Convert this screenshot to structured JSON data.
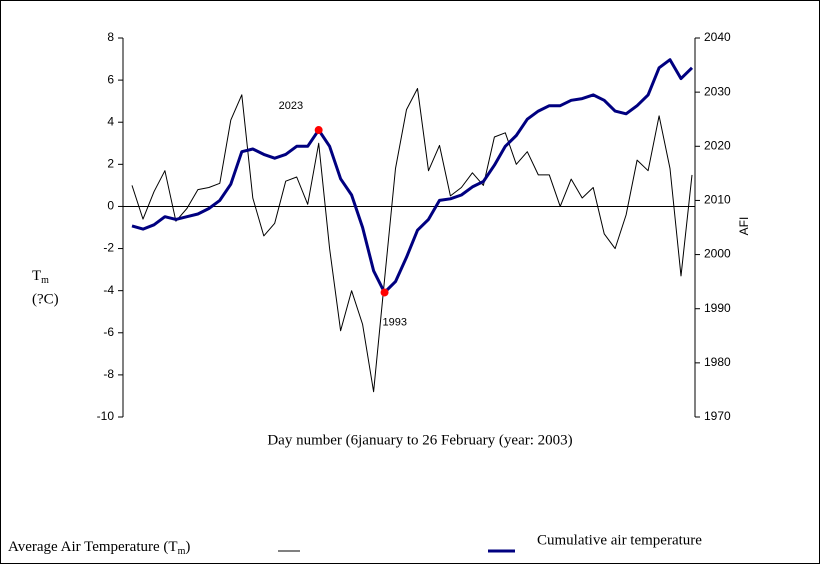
{
  "chart_data": {
    "type": "line",
    "xlabel": "Day number (6january to 26 February (year: 2003)",
    "ylabel": {
      "main": "T",
      "sub": "m",
      "unit": "(?C)"
    },
    "y2label": "AFI",
    "x": [
      1,
      2,
      3,
      4,
      5,
      6,
      7,
      8,
      9,
      10,
      11,
      12,
      13,
      14,
      15,
      16,
      17,
      18,
      19,
      20,
      21,
      22,
      23,
      24,
      25,
      26,
      27,
      28,
      29,
      30,
      31,
      32,
      33,
      34,
      35,
      36,
      37,
      38,
      39,
      40,
      41,
      42,
      43,
      44,
      45,
      46,
      47,
      48,
      49,
      50,
      51,
      52
    ],
    "xlim": [
      1,
      52
    ],
    "ylim": [
      -10,
      8
    ],
    "yticks": [
      -10,
      -8,
      -6,
      -4,
      -2,
      0,
      2,
      4,
      6,
      8
    ],
    "y2lim": [
      1970,
      2040
    ],
    "y2ticks": [
      1970,
      1980,
      1990,
      2000,
      2010,
      2020,
      2030,
      2040
    ],
    "series": [
      {
        "name": {
          "main": "Average Air Temperature (T",
          "sub": "m",
          "end": ")"
        },
        "color": "#000000",
        "values": [
          1.0,
          -0.6,
          0.7,
          1.7,
          -0.7,
          -0.1,
          0.8,
          0.9,
          1.1,
          4.1,
          5.3,
          0.4,
          -1.4,
          -0.8,
          1.2,
          1.4,
          0.1,
          3.0,
          -2.0,
          -5.9,
          -4.0,
          -5.6,
          -8.8,
          -3.5,
          1.8,
          4.6,
          5.6,
          1.7,
          2.9,
          0.5,
          0.9,
          1.6,
          1.0,
          3.3,
          3.5,
          2.0,
          2.6,
          1.5,
          1.5,
          0.0,
          1.3,
          0.4,
          0.9,
          -1.3,
          -2.0,
          -0.4,
          2.2,
          1.7,
          4.3,
          1.8,
          -3.3,
          1.5
        ]
      },
      {
        "name": "Cumulative air temperature",
        "color": "#000080",
        "axis": "y2",
        "values": [
          2005.3,
          2004.7,
          2005.5,
          2007,
          2006.5,
          2007,
          2007.5,
          2008.5,
          2010,
          2013,
          2019,
          2019.5,
          2018.5,
          2017.8,
          2018.5,
          2020,
          2020,
          2023,
          2020,
          2014,
          2011,
          2005,
          1997,
          1993,
          1995,
          1999.5,
          2004.5,
          2006.5,
          2010,
          2010.3,
          2011,
          2012.5,
          2013.5,
          2016.5,
          2020,
          2022,
          2025,
          2026.5,
          2027.5,
          2027.5,
          2028.5,
          2028.8,
          2029.5,
          2028.5,
          2026.5,
          2026,
          2027.5,
          2029.5,
          2034.5,
          2036,
          2032.5,
          2034.5
        ]
      }
    ],
    "annotations": [
      {
        "text": "2023",
        "index": 17,
        "color": "#ff0000"
      },
      {
        "text": "1993",
        "index": 23,
        "color": "#ff0000"
      }
    ]
  }
}
